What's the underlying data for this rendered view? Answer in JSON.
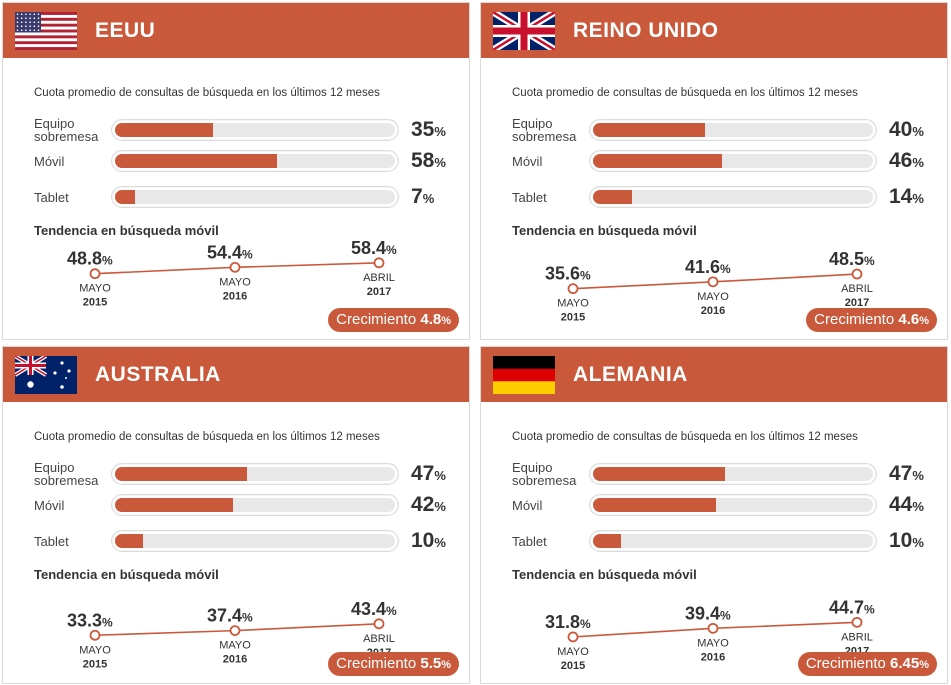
{
  "subtitle": "Cuota promedio de consultas de búsqueda en los últimos 12 meses",
  "trend_title": "Tendencia en búsqueda móvil",
  "device_labels": {
    "desktop_line1": "Equipo",
    "desktop_line2": "sobremesa",
    "mobile": "Móvil",
    "tablet": "Tablet"
  },
  "percent_sign": "%",
  "growth_label": "Crecimiento",
  "timepoints": [
    {
      "month": "MAYO",
      "year": "2015"
    },
    {
      "month": "MAYO",
      "year": "2016"
    },
    {
      "month": "ABRIL",
      "year": "2017"
    }
  ],
  "colors": {
    "accent": "#c9593a",
    "track": "#e8e8e8",
    "text": "#333333"
  },
  "chart_data": [
    {
      "type": "bar",
      "country": "EEUU",
      "flag": "us-flag",
      "categories": [
        "Equipo sobremesa",
        "Móvil",
        "Tablet"
      ],
      "values": [
        35,
        58,
        7
      ],
      "value_labels": [
        "35",
        "58",
        "7"
      ],
      "trend": {
        "type": "line",
        "x": [
          "MAYO 2015",
          "MAYO 2016",
          "ABRIL 2017"
        ],
        "y": [
          48.8,
          54.4,
          58.4
        ],
        "y_labels": [
          "48.8",
          "54.4",
          "58.4"
        ]
      },
      "growth": "4.8"
    },
    {
      "type": "bar",
      "country": "REINO UNIDO",
      "flag": "uk-flag",
      "categories": [
        "Equipo sobremesa",
        "Móvil",
        "Tablet"
      ],
      "values": [
        40,
        46,
        14
      ],
      "value_labels": [
        "40",
        "46",
        "14"
      ],
      "trend": {
        "type": "line",
        "x": [
          "MAYO 2015",
          "MAYO 2016",
          "ABRIL 2017"
        ],
        "y": [
          35.6,
          41.6,
          48.5
        ],
        "y_labels": [
          "35.6",
          "41.6",
          "48.5"
        ]
      },
      "growth": "4.6"
    },
    {
      "type": "bar",
      "country": "AUSTRALIA",
      "flag": "australia-flag",
      "categories": [
        "Equipo sobremesa",
        "Móvil",
        "Tablet"
      ],
      "values": [
        47,
        42,
        10
      ],
      "value_labels": [
        "47",
        "42",
        "10"
      ],
      "trend": {
        "type": "line",
        "x": [
          "MAYO 2015",
          "MAYO 2016",
          "ABRIL 2017"
        ],
        "y": [
          33.3,
          37.4,
          43.4
        ],
        "y_labels": [
          "33.3",
          "37.4",
          "43.4"
        ]
      },
      "growth": "5.5"
    },
    {
      "type": "bar",
      "country": "ALEMANIA",
      "flag": "germany-flag",
      "categories": [
        "Equipo sobremesa",
        "Móvil",
        "Tablet"
      ],
      "values": [
        47,
        44,
        10
      ],
      "value_labels": [
        "47",
        "44",
        "10"
      ],
      "trend": {
        "type": "line",
        "x": [
          "MAYO 2015",
          "MAYO 2016",
          "ABRIL 2017"
        ],
        "y": [
          31.8,
          39.4,
          44.7
        ],
        "y_labels": [
          "31.8",
          "39.4",
          "44.7"
        ]
      },
      "growth": "6.45"
    }
  ]
}
